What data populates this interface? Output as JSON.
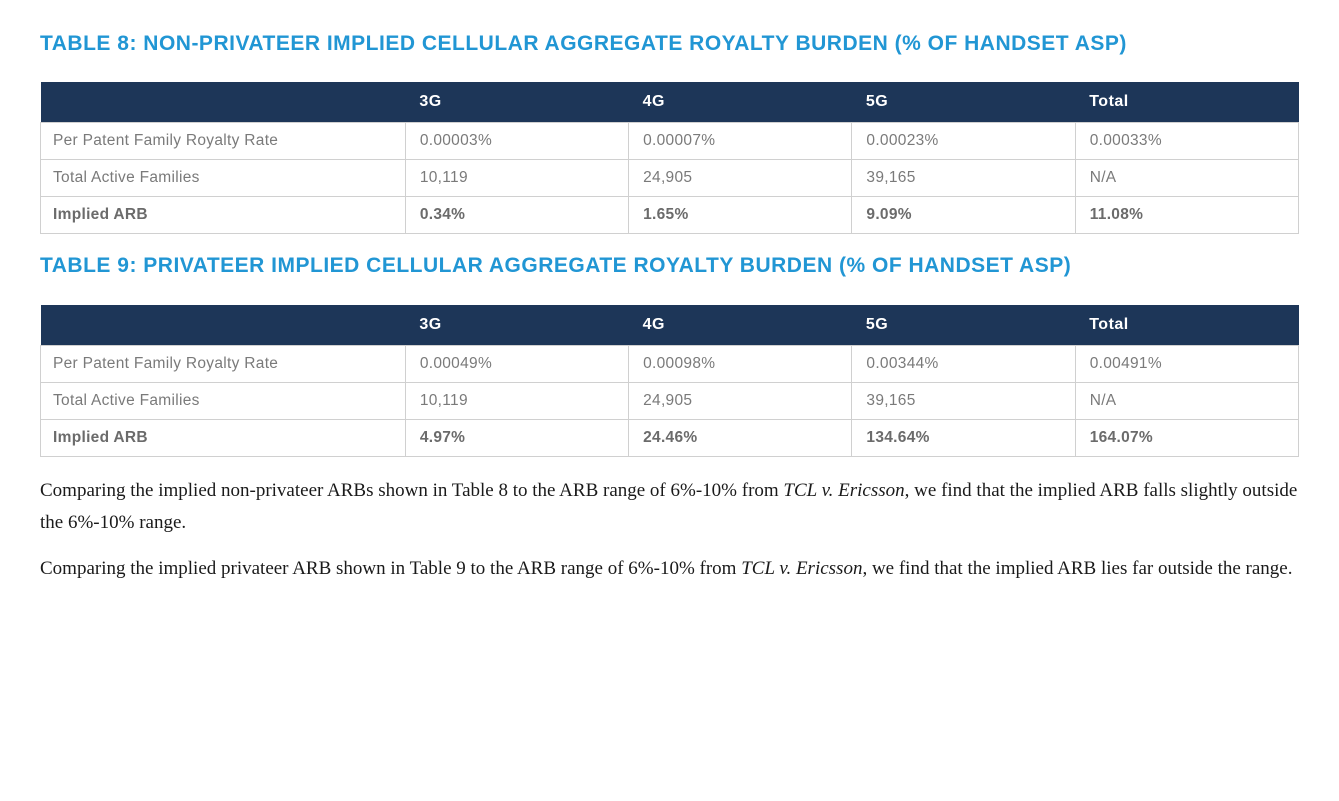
{
  "table8": {
    "title": "TABLE 8: NON-PRIVATEER IMPLIED CELLULAR AGGREGATE ROYALTY BURDEN (% OF HANDSET ASP)",
    "title_color": "#2196d4",
    "header_bg": "#1d3658",
    "header_color": "#ffffff",
    "border_color": "#d0d0d0",
    "text_color": "#7a7a7a",
    "columns": [
      "",
      "3G",
      "4G",
      "5G",
      "Total"
    ],
    "rows": [
      {
        "label": "Per Patent Family Royalty Rate",
        "c1": "0.00003%",
        "c2": "0.00007%",
        "c3": "0.00023%",
        "c4": "0.00033%",
        "bold": false
      },
      {
        "label": "Total Active Families",
        "c1": "10,119",
        "c2": "24,905",
        "c3": "39,165",
        "c4": "N/A",
        "bold": false
      },
      {
        "label": "Implied ARB",
        "c1": "0.34%",
        "c2": "1.65%",
        "c3": "9.09%",
        "c4": "11.08%",
        "bold": true
      }
    ]
  },
  "table9": {
    "title": "TABLE 9: PRIVATEER IMPLIED CELLULAR AGGREGATE ROYALTY BURDEN (% OF HANDSET ASP)",
    "title_color": "#2196d4",
    "header_bg": "#1d3658",
    "header_color": "#ffffff",
    "border_color": "#d0d0d0",
    "text_color": "#7a7a7a",
    "columns": [
      "",
      "3G",
      "4G",
      "5G",
      "Total"
    ],
    "rows": [
      {
        "label": "Per Patent Family Royalty Rate",
        "c1": "0.00049%",
        "c2": "0.00098%",
        "c3": "0.00344%",
        "c4": "0.00491%",
        "bold": false
      },
      {
        "label": "Total Active Families",
        "c1": "10,119",
        "c2": "24,905",
        "c3": "39,165",
        "c4": "N/A",
        "bold": false
      },
      {
        "label": "Implied ARB",
        "c1": "4.97%",
        "c2": "24.46%",
        "c3": "134.64%",
        "c4": "164.07%",
        "bold": true
      }
    ]
  },
  "paragraph1": {
    "part1": "Comparing the implied non-privateer ARBs shown in Table 8 to the ARB range of 6%-10% from ",
    "italic": "TCL v. Ericsson",
    "part2": ", we find that the implied ARB falls slightly outside the 6%-10% range."
  },
  "paragraph2": {
    "part1": "Comparing the implied privateer ARB shown in Table 9 to the ARB range of 6%-10% from ",
    "italic": "TCL v. Ericsson",
    "part2": ", we find that the implied ARB lies far outside the range."
  }
}
